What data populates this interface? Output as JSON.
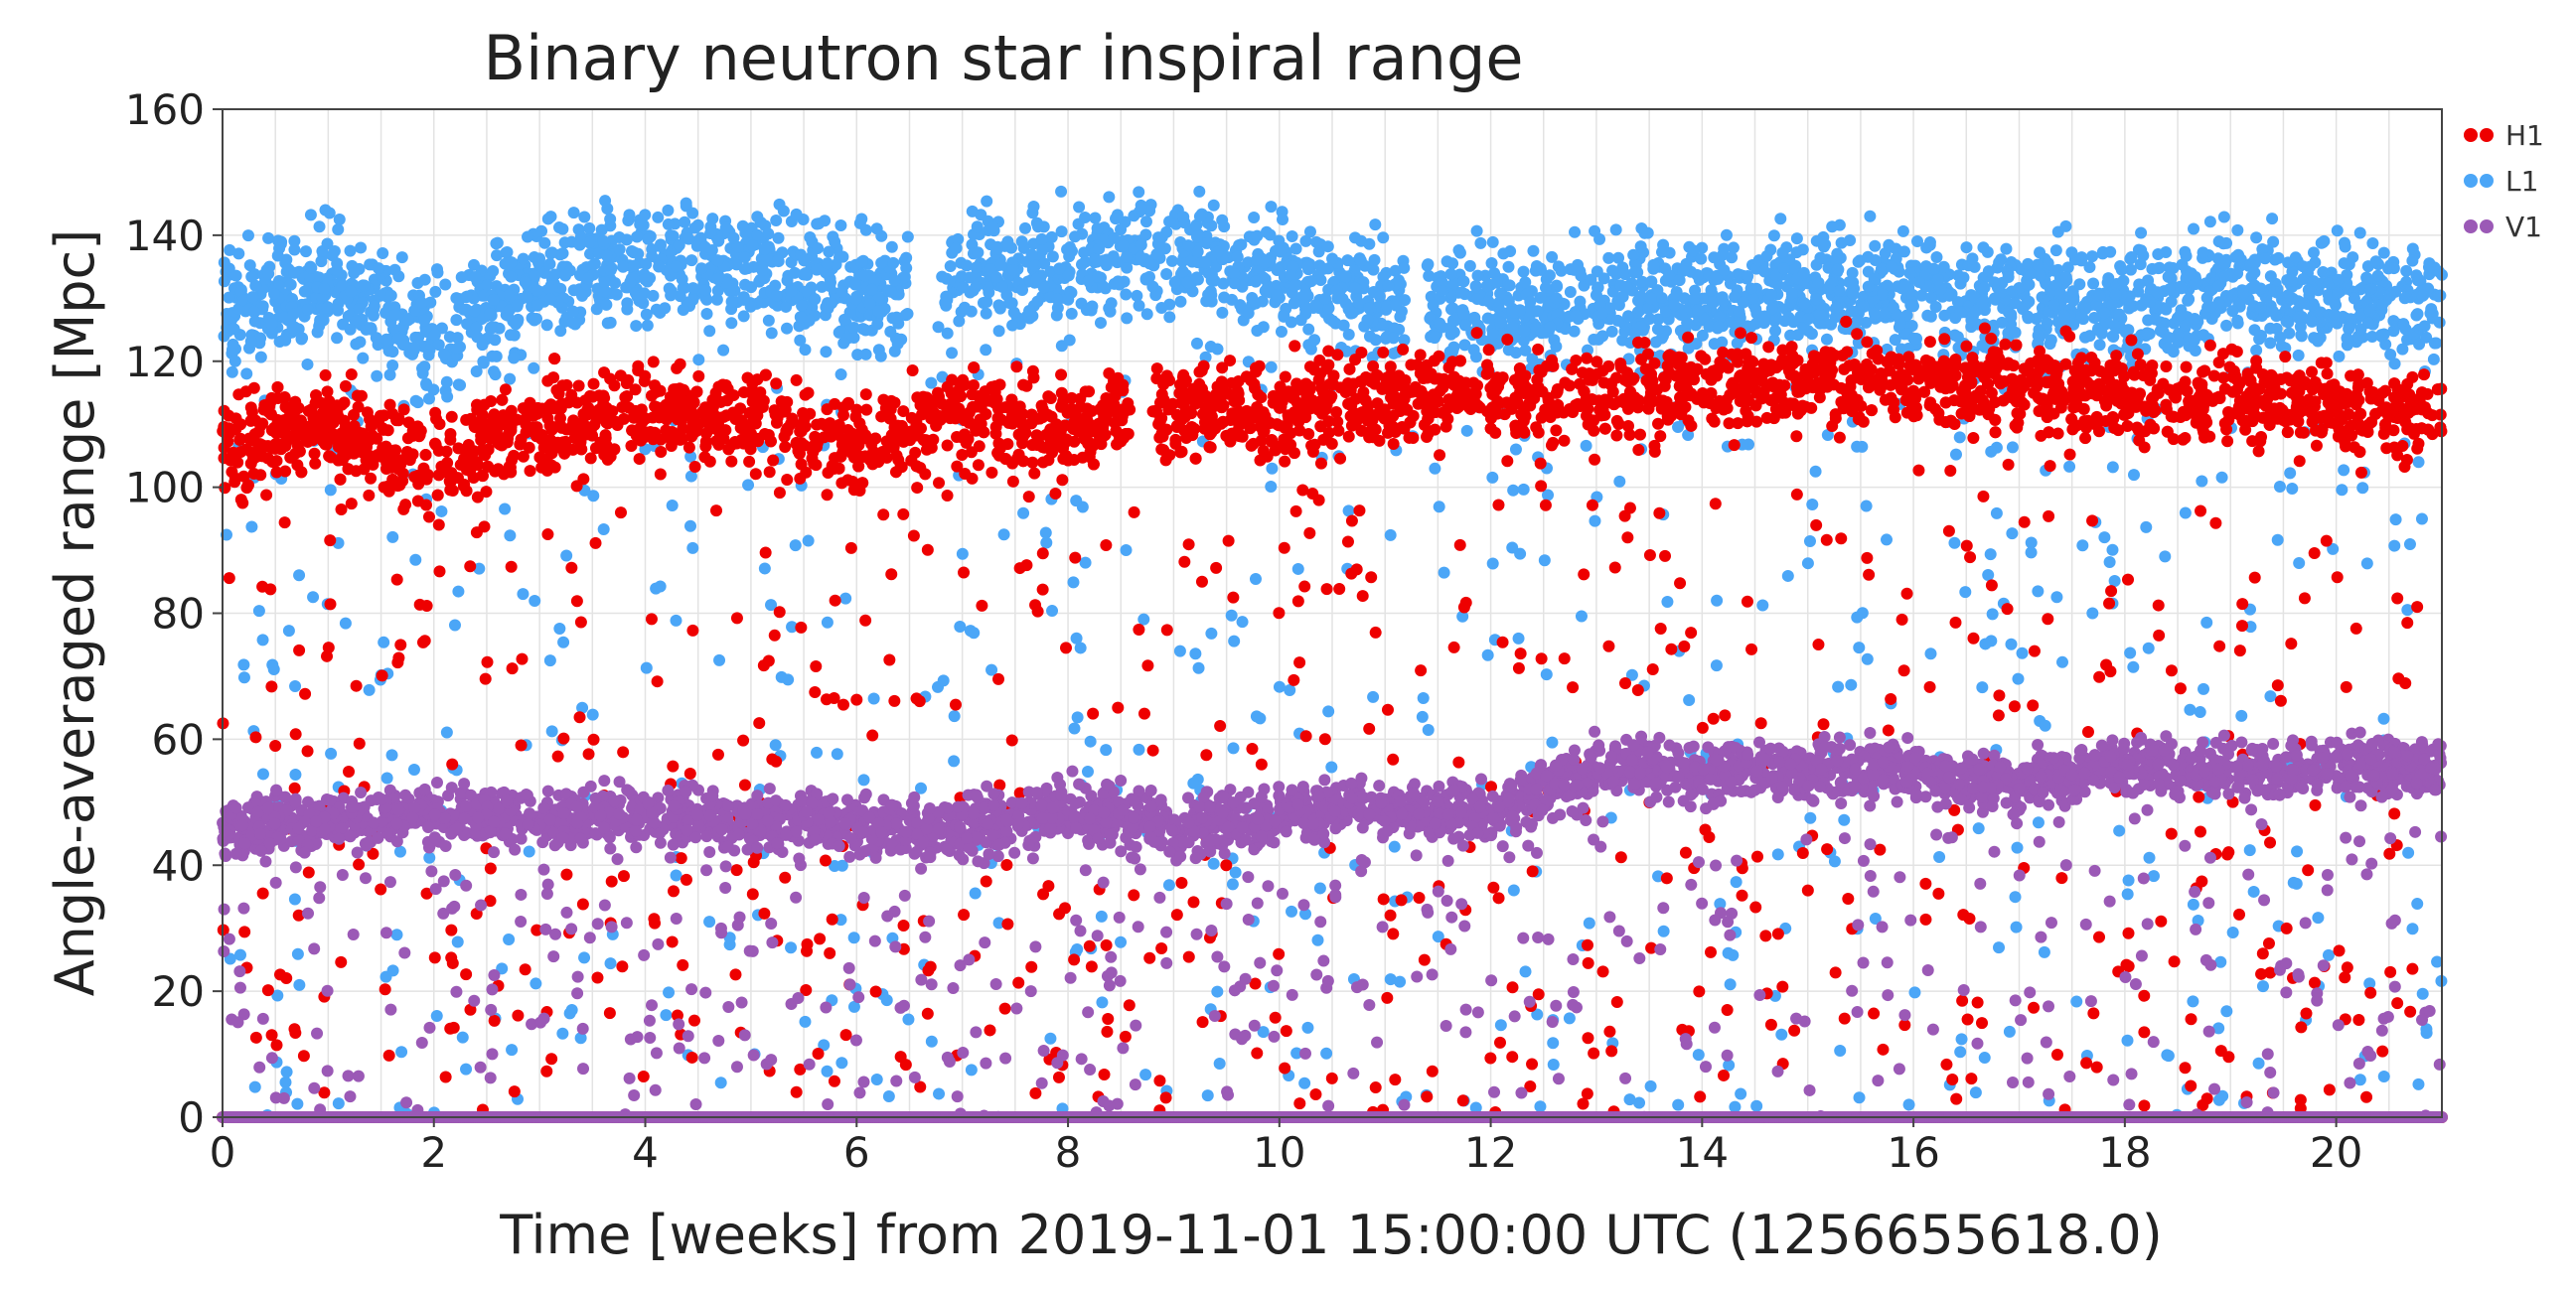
{
  "chart_data": {
    "type": "scatter",
    "title": "Binary neutron star inspiral range",
    "xlabel": "Time [weeks] from 2019-11-01 15:00:00 UTC (1256655618.0)",
    "ylabel": "Angle-averaged range [Mpc]",
    "xlim": [
      0,
      21
    ],
    "ylim": [
      0,
      160
    ],
    "xticks": [
      0,
      2,
      4,
      6,
      8,
      10,
      12,
      14,
      16,
      18,
      20
    ],
    "yticks": [
      0,
      20,
      40,
      60,
      80,
      100,
      120,
      140,
      160
    ],
    "grid": true,
    "legend_position": "top-right",
    "series": [
      {
        "name": "H1",
        "color": "#ee0000",
        "baseline_trend": [
          {
            "x": 0,
            "y": 107
          },
          {
            "x": 1,
            "y": 110
          },
          {
            "x": 2,
            "y": 103
          },
          {
            "x": 3,
            "y": 110
          },
          {
            "x": 4,
            "y": 112
          },
          {
            "x": 5,
            "y": 111
          },
          {
            "x": 6,
            "y": 106
          },
          {
            "x": 7,
            "y": 112
          },
          {
            "x": 8,
            "y": 109
          },
          {
            "x": 9,
            "y": 113
          },
          {
            "x": 10,
            "y": 112
          },
          {
            "x": 11,
            "y": 114
          },
          {
            "x": 12,
            "y": 115
          },
          {
            "x": 13,
            "y": 114
          },
          {
            "x": 14,
            "y": 116
          },
          {
            "x": 15,
            "y": 117
          },
          {
            "x": 16,
            "y": 117
          },
          {
            "x": 17,
            "y": 116
          },
          {
            "x": 18,
            "y": 115
          },
          {
            "x": 19,
            "y": 114
          },
          {
            "x": 20,
            "y": 113
          },
          {
            "x": 21,
            "y": 112
          }
        ]
      },
      {
        "name": "L1",
        "color": "#4ba6f7",
        "baseline_trend": [
          {
            "x": 0,
            "y": 127
          },
          {
            "x": 1,
            "y": 132
          },
          {
            "x": 2,
            "y": 124
          },
          {
            "x": 3,
            "y": 133
          },
          {
            "x": 4,
            "y": 136
          },
          {
            "x": 5,
            "y": 135
          },
          {
            "x": 6,
            "y": 130
          },
          {
            "x": 7,
            "y": 133
          },
          {
            "x": 8,
            "y": 136
          },
          {
            "x": 9,
            "y": 137
          },
          {
            "x": 10,
            "y": 133
          },
          {
            "x": 11,
            "y": 130
          },
          {
            "x": 12,
            "y": 128
          },
          {
            "x": 13,
            "y": 130
          },
          {
            "x": 14,
            "y": 130
          },
          {
            "x": 15,
            "y": 131
          },
          {
            "x": 16,
            "y": 131
          },
          {
            "x": 17,
            "y": 130
          },
          {
            "x": 18,
            "y": 129
          },
          {
            "x": 19,
            "y": 132
          },
          {
            "x": 20,
            "y": 130
          },
          {
            "x": 21,
            "y": 129
          }
        ]
      },
      {
        "name": "V1",
        "color": "#9b59b6",
        "baseline_trend": [
          {
            "x": 0,
            "y": 46
          },
          {
            "x": 1,
            "y": 47
          },
          {
            "x": 2,
            "y": 48
          },
          {
            "x": 3,
            "y": 47
          },
          {
            "x": 4,
            "y": 48
          },
          {
            "x": 5,
            "y": 47
          },
          {
            "x": 6,
            "y": 46
          },
          {
            "x": 7,
            "y": 46
          },
          {
            "x": 8,
            "y": 49
          },
          {
            "x": 9,
            "y": 46
          },
          {
            "x": 10,
            "y": 48
          },
          {
            "x": 11,
            "y": 49
          },
          {
            "x": 12,
            "y": 48
          },
          {
            "x": 13,
            "y": 56
          },
          {
            "x": 14,
            "y": 55
          },
          {
            "x": 15,
            "y": 55
          },
          {
            "x": 16,
            "y": 55
          },
          {
            "x": 17,
            "y": 53
          },
          {
            "x": 18,
            "y": 56
          },
          {
            "x": 19,
            "y": 55
          },
          {
            "x": 20,
            "y": 56
          },
          {
            "x": 21,
            "y": 55
          }
        ]
      }
    ],
    "gaps": [
      {
        "series": "L1",
        "from": 6.5,
        "to": 6.8
      },
      {
        "series": "L1",
        "from": 11.2,
        "to": 11.4
      },
      {
        "series": "H1",
        "from": 8.6,
        "to": 8.8
      }
    ],
    "floor_band": {
      "y": 0,
      "series": [
        "H1",
        "V1"
      ]
    }
  }
}
